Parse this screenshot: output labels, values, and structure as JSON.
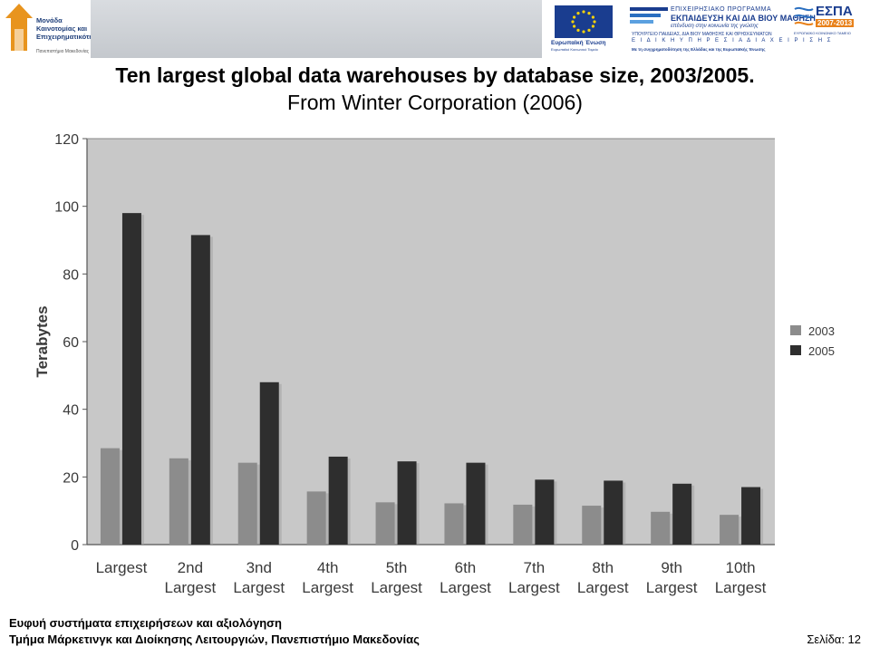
{
  "header": {
    "logo_text": "Μονάδα\nΚαινοτομίας και\nΕπιχειρηματικότητας",
    "logo_sub": "Πανεπιστήμιο Μακεδονίας",
    "eu_caption": "Ευρωπαϊκή Ένωση",
    "eu_caption2": "Ευρωπαϊκό Κοινωνικό Ταμείο",
    "ep_line1": "ΕΠΙΧΕΙΡΗΣΙΑΚΟ ΠΡΟΓΡΑΜΜΑ",
    "ep_line2": "ΕΚΠΑΙΔΕΥΣΗ ΚΑΙ ΔΙΑ ΒΙΟΥ ΜΑΘΗΣΗ",
    "ep_line3": "επένδυση στην κοινωνία της γνώσης",
    "ep_line4": "ΥΠΟΥΡΓΕΙΟ ΠΑΙΔΕΙΑΣ, ΔΙΑ ΒΙΟΥ ΜΑΘΗΣΗΣ ΚΑΙ ΘΡΗΣΚΕΥΜΑΤΩΝ",
    "ep_line5": "Ε Ι Δ Ι Κ Η   Υ Π Η Ρ Ε Σ Ι Α   Δ Ι Α Χ Ε Ι Ρ Ι Σ Η Σ",
    "ep_line6": "Με τη συγχρηματοδότηση της Ελλάδας και της Ευρωπαϊκής Ένωσης",
    "espa_title": "ΕΣΠΑ",
    "espa_years": "2007-2013",
    "espa_sub": "ΕΥΡΩΠΑΪΚΟ ΚΟΙΝΩΝΙΚΟ ΤΑΜΕΙΟ"
  },
  "title": {
    "line1": "Ten largest global data warehouses by database size, 2003/2005.",
    "line2": "From Winter Corporation (2006)"
  },
  "chart_data": {
    "type": "bar",
    "categories": [
      [
        "Largest"
      ],
      [
        "2nd",
        "Largest"
      ],
      [
        "3nd",
        "Largest"
      ],
      [
        "4th",
        "Largest"
      ],
      [
        "5th",
        "Largest"
      ],
      [
        "6th",
        "Largest"
      ],
      [
        "7th",
        "Largest"
      ],
      [
        "8th",
        "Largest"
      ],
      [
        "9th",
        "Largest"
      ],
      [
        "10th",
        "Largest"
      ]
    ],
    "series": [
      {
        "name": "2003",
        "color": "#8c8c8c",
        "values": [
          28.5,
          25.5,
          24.2,
          15.7,
          12.5,
          12.2,
          11.8,
          11.5,
          9.7,
          8.8
        ]
      },
      {
        "name": "2005",
        "color": "#2e2e2e",
        "values": [
          98,
          91.5,
          48,
          26,
          24.6,
          24.2,
          19.2,
          18.9,
          18,
          17
        ]
      }
    ],
    "ylabel": "Terabytes",
    "xlabel": "",
    "ylim": [
      0,
      120
    ],
    "yticks": [
      0,
      20,
      40,
      60,
      80,
      100,
      120
    ],
    "grid": false,
    "legend": "right",
    "plot_background": "#c8c8c8"
  },
  "footer": {
    "line1": "Ευφυή συστήματα επιχειρήσεων και αξιολόγηση",
    "line2": "Τμήμα Μάρκετινγκ και Διοίκησης Λειτουργιών, Πανεπιστήμιο Μακεδονίας",
    "page": "Σελίδα: 12"
  }
}
